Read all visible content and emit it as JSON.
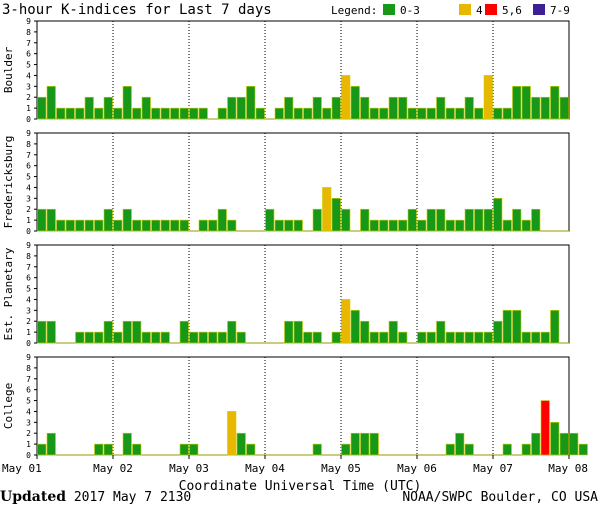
{
  "page": {
    "title": "3-hour K-indices for Last 7 days",
    "updated_label": "Updated",
    "updated_value": "2017 May  7 2130",
    "source": "NOAA/SWPC Boulder, CO USA"
  },
  "legend": {
    "label": "Legend:",
    "items": [
      {
        "label": "0-3",
        "color": "#189818"
      },
      {
        "label": "4",
        "color": "#e8b800"
      },
      {
        "label": "5,6",
        "color": "#ff0000"
      },
      {
        "label": "7-9",
        "color": "#3c2094"
      }
    ]
  },
  "chart_data": {
    "type": "bar",
    "title": "3-hour K-indices for Last 7 days",
    "xlabel": "Coordinate Universal Time (UTC)",
    "ylim": [
      0,
      9
    ],
    "yticks": [
      "0",
      "1",
      "2",
      "3",
      "4",
      "5",
      "6",
      "7",
      "8",
      "9"
    ],
    "xticks": [
      "May 01",
      "May 02",
      "May 03",
      "May 04",
      "May 05",
      "May 06",
      "May 07",
      "May 08"
    ],
    "bins_per_day": 8,
    "series": [
      {
        "name": "Boulder",
        "values": [
          2,
          3,
          1,
          1,
          1,
          2,
          1,
          2,
          1,
          3,
          1,
          2,
          1,
          1,
          1,
          1,
          1,
          1,
          0,
          1,
          2,
          2,
          3,
          1,
          0,
          1,
          2,
          1,
          1,
          2,
          1,
          2,
          4,
          3,
          2,
          1,
          1,
          2,
          2,
          1,
          1,
          1,
          2,
          1,
          1,
          2,
          1,
          4,
          1,
          1,
          3,
          3,
          2,
          2,
          3,
          2,
          0
        ]
      },
      {
        "name": "Fredericksburg",
        "values": [
          2,
          2,
          1,
          1,
          1,
          1,
          1,
          2,
          1,
          2,
          1,
          1,
          1,
          1,
          1,
          1,
          0,
          1,
          1,
          2,
          1,
          0,
          0,
          0,
          2,
          1,
          1,
          1,
          0,
          2,
          4,
          3,
          2,
          0,
          2,
          1,
          1,
          1,
          1,
          2,
          1,
          2,
          2,
          1,
          1,
          2,
          2,
          2,
          3,
          1,
          2,
          1,
          2,
          0
        ]
      },
      {
        "name": "Est. Planetary",
        "values": [
          2,
          2,
          0,
          0,
          1,
          1,
          1,
          2,
          1,
          2,
          2,
          1,
          1,
          1,
          0,
          2,
          1,
          1,
          1,
          1,
          2,
          1,
          0,
          0,
          0,
          0,
          2,
          2,
          1,
          1,
          0,
          1,
          4,
          3,
          2,
          1,
          1,
          2,
          1,
          0,
          1,
          1,
          2,
          1,
          1,
          1,
          1,
          1,
          2,
          3,
          3,
          1,
          1,
          1,
          3,
          0
        ]
      },
      {
        "name": "College",
        "values": [
          1,
          2,
          0,
          0,
          0,
          0,
          1,
          1,
          0,
          2,
          1,
          0,
          0,
          0,
          0,
          1,
          1,
          0,
          0,
          0,
          4,
          2,
          1,
          0,
          0,
          0,
          0,
          0,
          0,
          1,
          0,
          0,
          1,
          2,
          2,
          2,
          0,
          0,
          0,
          0,
          0,
          0,
          0,
          1,
          2,
          1,
          0,
          0,
          0,
          1,
          0,
          1,
          2,
          5,
          3,
          2,
          2,
          1
        ]
      }
    ]
  }
}
